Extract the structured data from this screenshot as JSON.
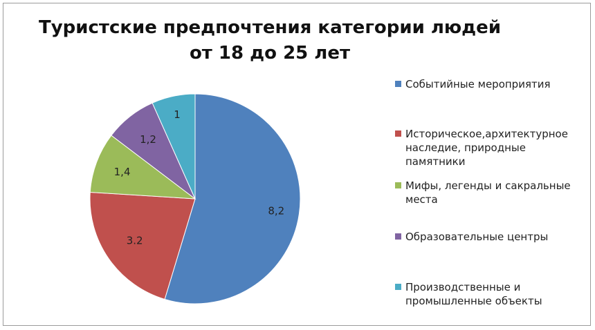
{
  "chart_data": {
    "type": "pie",
    "title_lines": [
      "Туристские предпочтения категории людей",
      "от 18 до 25 лет"
    ],
    "categories": [
      "Событийные мероприятия",
      "Историческое,архитектурное наследие, природные памятники",
      "Мифы, легенды и сакральные места",
      "Образовательные центры",
      "Производственные и промышленные объекты"
    ],
    "values": [
      8.2,
      3.2,
      1.4,
      1.2,
      1
    ],
    "value_labels": [
      "8,2",
      "3.2",
      "1,4",
      "1,2",
      "1"
    ],
    "colors": [
      "#4F81BD",
      "#C0504D",
      "#9BBB59",
      "#8064A2",
      "#4BACC6"
    ],
    "legend_position": "right"
  },
  "legend": {
    "items": [
      {
        "lines": [
          "Событийные мероприятия"
        ]
      },
      {
        "lines": [
          "Историческое,архитектурное",
          "наследие, природные",
          "памятники"
        ]
      },
      {
        "lines": [
          "Мифы, легенды и сакральные",
          "места"
        ]
      },
      {
        "lines": [
          "Образовательные центры"
        ]
      },
      {
        "lines": [
          "Производственные и",
          "промышленные объекты"
        ]
      }
    ]
  }
}
